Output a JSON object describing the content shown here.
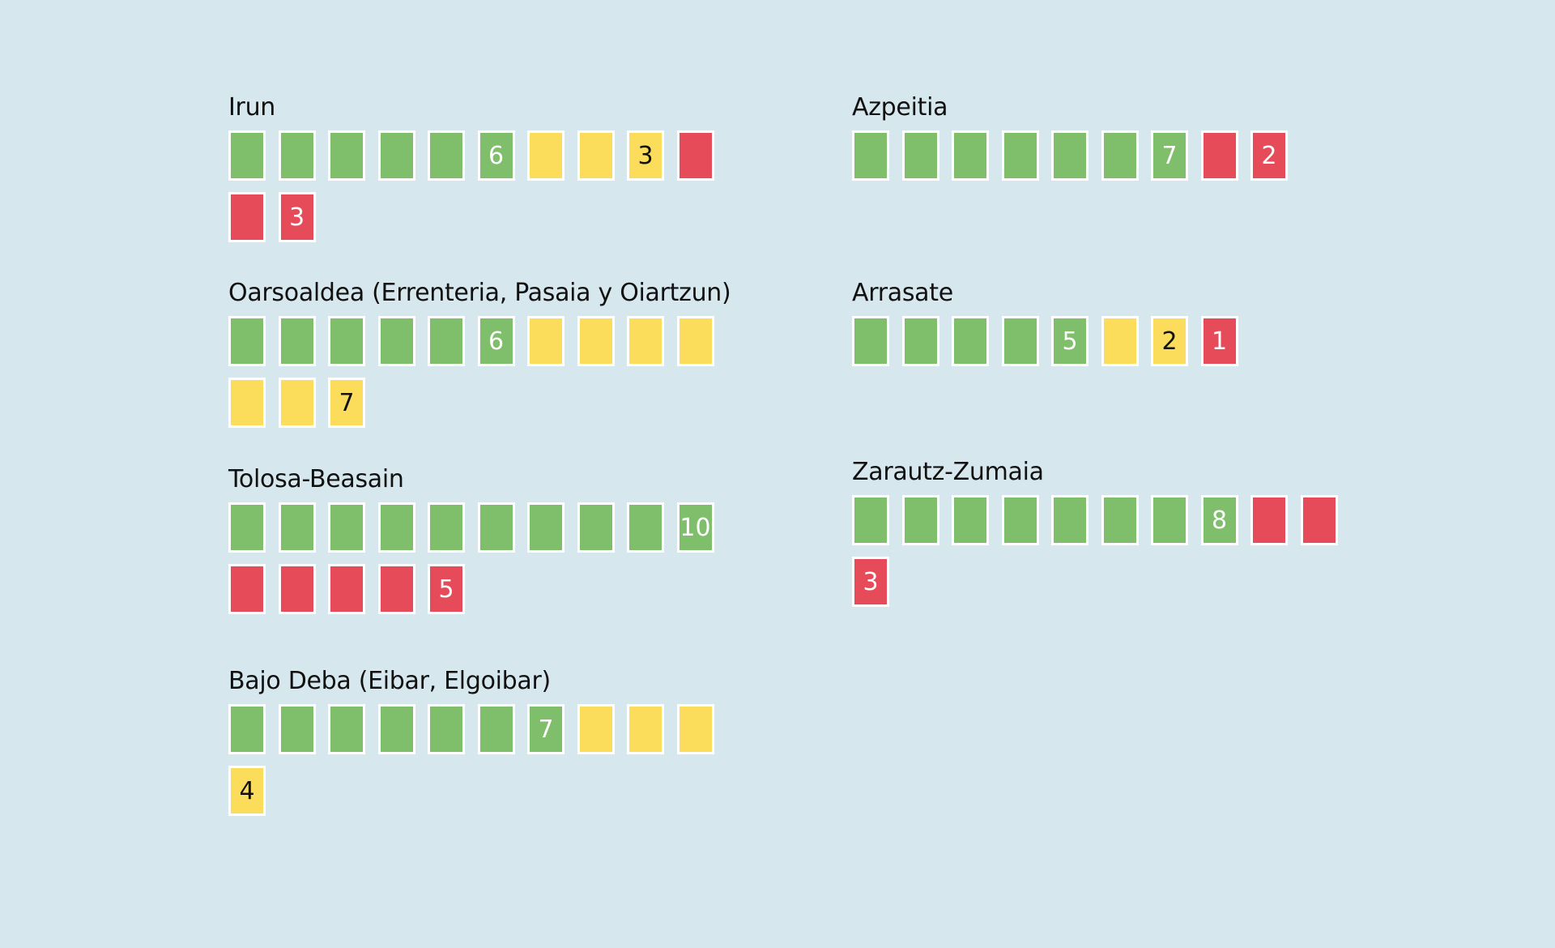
{
  "chart_data": {
    "type": "waffle",
    "colors": {
      "green": "#7fbe6a",
      "yellow": "#fbdd5b",
      "red": "#e54b58"
    },
    "groups": [
      {
        "name": "Irun",
        "counts": {
          "green": 6,
          "yellow": 3,
          "red": 3
        }
      },
      {
        "name": "Oarsoaldea (Errenteria, Pasaia y Oiartzun)",
        "counts": {
          "green": 6,
          "yellow": 7,
          "red": 0
        }
      },
      {
        "name": "Tolosa-Beasain",
        "counts": {
          "green": 10,
          "yellow": 0,
          "red": 5
        }
      },
      {
        "name": "Bajo Deba (Eibar, Elgoibar)",
        "counts": {
          "green": 7,
          "yellow": 4,
          "red": 0
        }
      },
      {
        "name": "Azpeitia",
        "counts": {
          "green": 7,
          "yellow": 0,
          "red": 2
        }
      },
      {
        "name": "Arrasate",
        "counts": {
          "green": 5,
          "yellow": 2,
          "red": 1
        }
      },
      {
        "name": "Zarautz-Zumaia",
        "counts": {
          "green": 8,
          "yellow": 0,
          "red": 3
        }
      }
    ]
  }
}
